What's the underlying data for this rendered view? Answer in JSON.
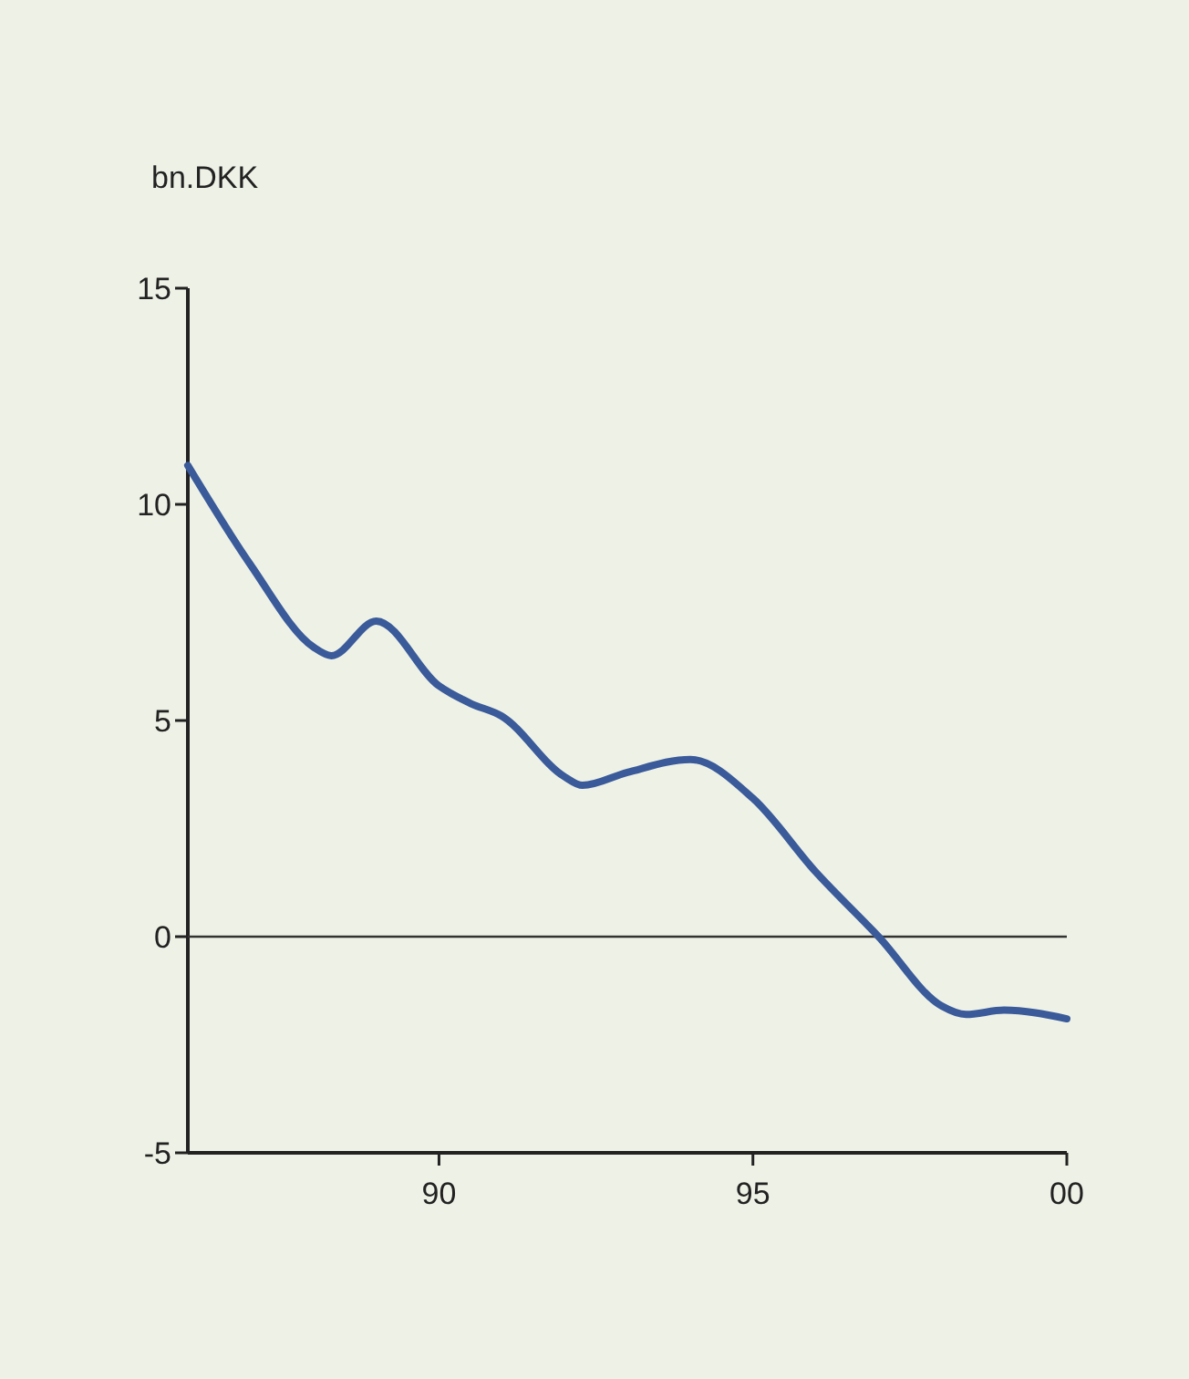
{
  "chart_data": {
    "type": "line",
    "ylabel": "bn.DKK",
    "x": [
      "1986",
      "1987",
      "1988",
      "1988-04-15",
      "1989",
      "1990",
      "1990-07",
      "1991",
      "1992",
      "1992-04-15",
      "1993",
      "1994",
      "1995",
      "1996",
      "1997",
      "1998",
      "1998-05-25",
      "1999",
      "2000"
    ],
    "series": [
      {
        "color": "#3a5a9a",
        "values": [
          10.9,
          8.6,
          6.7,
          6.5,
          7.3,
          5.8,
          5.4,
          5.1,
          3.7,
          3.5,
          3.8,
          4.1,
          3.2,
          1.5,
          0,
          -1.6,
          -1.8,
          -1.7,
          -1.9
        ]
      }
    ],
    "xlim": [
      "1986",
      "2000"
    ],
    "xticks": [
      {
        "value": "1990",
        "label": "90"
      },
      {
        "value": "1995",
        "label": "95"
      },
      {
        "value": "2000",
        "label": "00"
      }
    ],
    "ylim": [
      -5,
      15
    ],
    "yticks": [
      -5,
      0,
      5,
      10,
      15
    ],
    "ref_lines": [
      {
        "axis": "y",
        "value": 0,
        "color": "#333333"
      }
    ],
    "grid": false,
    "marker": "none",
    "line_style": "solid"
  }
}
